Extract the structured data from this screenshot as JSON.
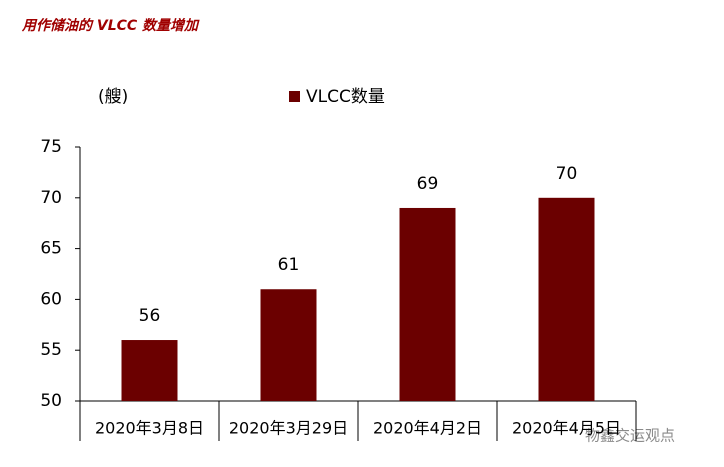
{
  "chart_data": {
    "type": "bar",
    "title": "用作储油的 VLCC 数量增加",
    "y_label": "(艘)",
    "categories": [
      "2020年3月8日",
      "2020年3月29日",
      "2020年4月2日",
      "2020年4月5日"
    ],
    "series": [
      {
        "name": "VLCC数量",
        "color": "#6b0000",
        "values": [
          56,
          61,
          69,
          70
        ]
      }
    ],
    "ylim": [
      50,
      75
    ],
    "yticks": [
      50,
      55,
      60,
      65,
      70,
      75
    ],
    "grid": false,
    "watermark": "物鑫交运观点"
  }
}
